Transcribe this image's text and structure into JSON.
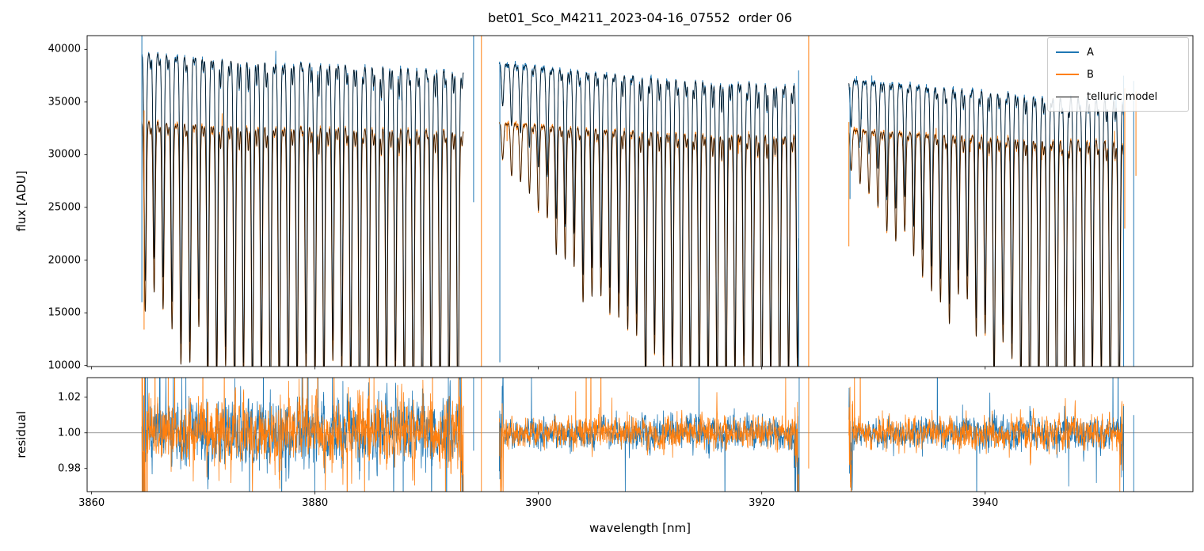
{
  "chart_data": {
    "type": "line",
    "title": "bet01_Sco_M4211_2023-04-16_07552  order 06",
    "xlabel": "wavelength [nm]",
    "xlim": [
      3859.6,
      3958.6
    ],
    "xticks": [
      3860,
      3880,
      3900,
      3920,
      3940
    ],
    "xtick_labels": [
      "3860",
      "3880",
      "3900",
      "3920",
      "3940"
    ],
    "panels": [
      {
        "name": "flux",
        "ylabel": "flux [ADU]",
        "ylim": [
          9900,
          41300
        ],
        "yticks": [
          10000,
          15000,
          20000,
          25000,
          30000,
          35000,
          40000
        ],
        "ytick_labels": [
          "10000",
          "15000",
          "20000",
          "25000",
          "30000",
          "35000",
          "40000"
        ]
      },
      {
        "name": "residual",
        "ylabel": "residual",
        "ylim": [
          0.967,
          1.031
        ],
        "yticks": [
          0.98,
          1.0,
          1.02
        ],
        "ytick_labels": [
          "0.98",
          "1.00",
          "1.02"
        ],
        "hline": 1.0
      }
    ],
    "legend": {
      "position": "upper right",
      "entries": [
        {
          "name": "A",
          "color": "#1f77b4",
          "lw": 2
        },
        {
          "name": "B",
          "color": "#ff7f0e",
          "lw": 2
        },
        {
          "name": "telluric model",
          "color": "#000000",
          "lw": 1
        }
      ]
    },
    "colors": {
      "A": "#1f77b4",
      "B": "#ff7f0e",
      "model": "#000000",
      "hline": "#777777"
    },
    "series_model": {
      "description": "Echelle-order spectra of beams A and B with deep periodic telluric absorption comb; black telluric model overplotted on both beams; three wavelength segments separated by gaps; bottom panel shows data/model residuals around 1.0.",
      "segments": [
        {
          "x0": 3864.5,
          "x1": 3893.3,
          "depth_start": 0.52,
          "depth_end": 0.8,
          "depth_ramp_nm": 11
        },
        {
          "x0": 3896.5,
          "x1": 3923.3,
          "depth_start": 0.1,
          "depth_end": 0.82,
          "depth_ramp_nm": 15
        },
        {
          "x0": 3927.8,
          "x1": 3952.4,
          "depth_start": 0.12,
          "depth_end": 0.84,
          "depth_ramp_nm": 17
        }
      ],
      "line_spacing_nm": 0.8,
      "line_grid_origin_nm": 3860,
      "line_core_sigma_nm": 0.09,
      "line_wing_gamma_nm": 0.12,
      "secondary_line_depth": 0.05,
      "continuum_A": {
        "value_at_3864_adu": 40400,
        "slope_adu_per_nm": -48.3
      },
      "continuum_B": {
        "value_at_3864_adu": 33750,
        "slope_adu_per_nm": -18.5
      },
      "flux_noise_frac": 0.0035,
      "residual_noise_base": 0.0033,
      "residual_noise_seg1_mult": 2.0,
      "edge_spikes": [
        {
          "x": 3864.5,
          "series": "A",
          "y0": 16000,
          "y1": 41300
        },
        {
          "x": 3864.7,
          "series": "B",
          "y0": 13400,
          "y1": 34200
        },
        {
          "x": 3894.2,
          "series": "A",
          "y0": 25500,
          "y1": 41300
        },
        {
          "x": 3894.9,
          "series": "B",
          "y0": 9900,
          "y1": 41300
        },
        {
          "x": 3896.55,
          "series": "A",
          "y0": 10300,
          "y1": 38600
        },
        {
          "x": 3923.3,
          "series": "A",
          "y0": 9900,
          "y1": 38000
        },
        {
          "x": 3924.2,
          "series": "B",
          "y0": 9900,
          "y1": 41300
        },
        {
          "x": 3927.8,
          "series": "B",
          "y0": 21300,
          "y1": 33100
        },
        {
          "x": 3927.9,
          "series": "A",
          "y0": 25800,
          "y1": 36400
        },
        {
          "x": 3952.4,
          "series": "A",
          "y0": 9900,
          "y1": 37500
        },
        {
          "x": 3952.5,
          "series": "B",
          "y0": 23000,
          "y1": 36300
        },
        {
          "x": 3953.3,
          "series": "A",
          "y0": 9900,
          "y1": 37000
        },
        {
          "x": 3953.5,
          "series": "B",
          "y0": 28000,
          "y1": 36000
        }
      ],
      "residual_spikes": [
        {
          "x": 3865.0,
          "series": "B",
          "y0": 0.967,
          "y1": 1.012
        },
        {
          "x": 3894.2,
          "series": "A",
          "y0": 0.99,
          "y1": 1.031
        },
        {
          "x": 3894.9,
          "series": "B",
          "y0": 0.967,
          "y1": 1.031
        },
        {
          "x": 3896.55,
          "series": "A",
          "y0": 0.974,
          "y1": 1.006
        },
        {
          "x": 3923.35,
          "series": "A",
          "y0": 0.967,
          "y1": 1.031
        },
        {
          "x": 3924.2,
          "series": "B",
          "y0": 0.98,
          "y1": 1.031
        },
        {
          "x": 3952.4,
          "series": "A",
          "y0": 0.967,
          "y1": 1.015
        },
        {
          "x": 3953.3,
          "series": "A",
          "y0": 0.967,
          "y1": 1.01
        }
      ]
    }
  }
}
